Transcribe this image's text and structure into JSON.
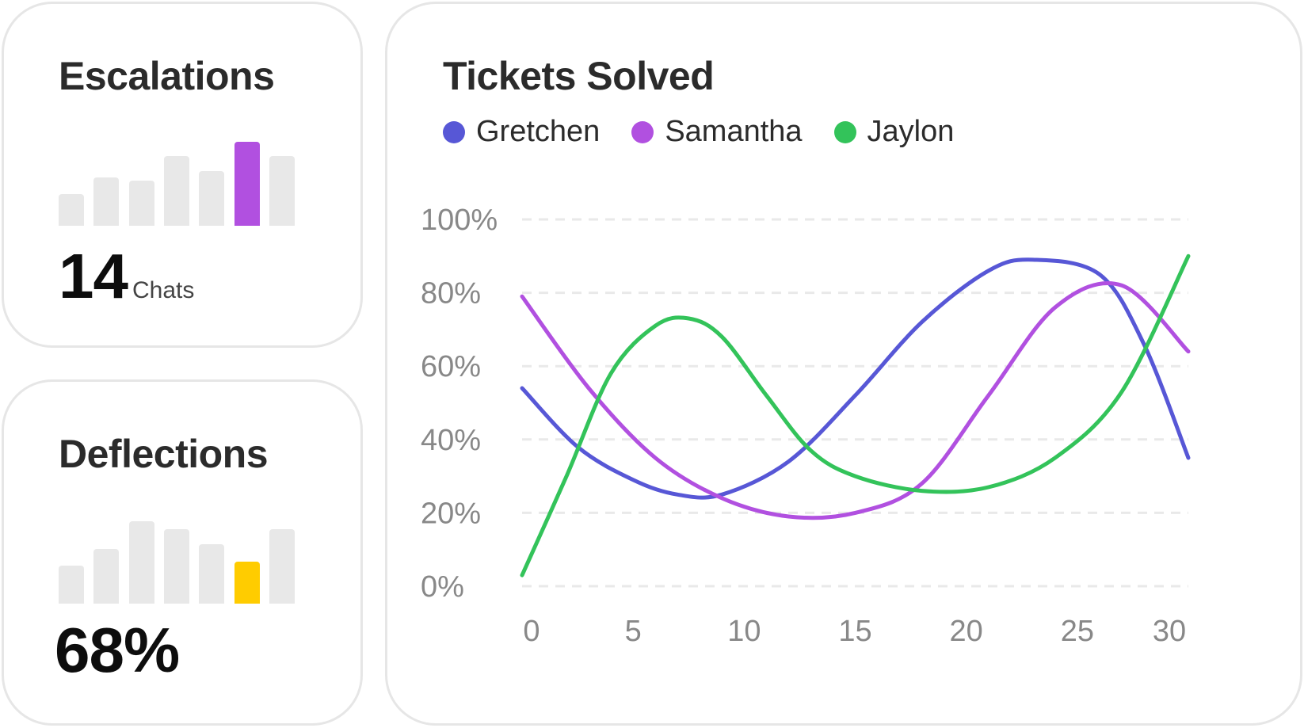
{
  "escalations": {
    "title": "Escalations",
    "value": "14",
    "unit": "Chats",
    "bars": [
      0.38,
      0.58,
      0.54,
      0.83,
      0.65,
      1.0,
      0.83
    ],
    "highlight_index": 5,
    "highlight_color": "#b150e0",
    "bar_color": "#e8e8e8"
  },
  "deflections": {
    "title": "Deflections",
    "value": "68%",
    "bars": [
      0.45,
      0.65,
      0.98,
      0.89,
      0.71,
      0.5,
      0.89
    ],
    "highlight_index": 5,
    "highlight_color": "#ffcc00",
    "bar_color": "#e8e8e8"
  },
  "chart_data": {
    "type": "line",
    "title": "Tickets Solved",
    "xlabel": "",
    "ylabel": "",
    "xlim": [
      0,
      30
    ],
    "ylim": [
      0,
      100
    ],
    "x_ticks": [
      0,
      5,
      10,
      15,
      20,
      25,
      30
    ],
    "x_tick_labels": [
      "0",
      "5",
      "10",
      "15",
      "20",
      "25",
      "30"
    ],
    "y_ticks": [
      0,
      20,
      40,
      60,
      80,
      100
    ],
    "y_tick_labels": [
      "0%",
      "20%",
      "40%",
      "60%",
      "80%",
      "100%"
    ],
    "grid": true,
    "legend": "top-left",
    "series": [
      {
        "name": "Gretchen",
        "color": "#5757d6",
        "x": [
          0,
          2.5,
          5,
          7,
          9,
          12,
          15,
          18,
          21,
          23,
          26,
          28,
          30
        ],
        "y": [
          54,
          38,
          29,
          25,
          25,
          34,
          52,
          72,
          86,
          89,
          85,
          66,
          35
        ]
      },
      {
        "name": "Samantha",
        "color": "#b150e0",
        "x": [
          0,
          3,
          6,
          9,
          12,
          15,
          18,
          21,
          24,
          27,
          30
        ],
        "y": [
          79,
          54,
          35,
          24,
          19,
          20,
          28,
          52,
          76,
          82,
          64
        ]
      },
      {
        "name": "Jaylon",
        "color": "#33c35a",
        "x": [
          0,
          2,
          4,
          6,
          7.5,
          9,
          11,
          13,
          15,
          18,
          21,
          24,
          27,
          30
        ],
        "y": [
          3,
          30,
          58,
          71,
          73,
          68,
          52,
          37,
          30,
          26,
          27,
          35,
          53,
          90
        ]
      }
    ]
  }
}
